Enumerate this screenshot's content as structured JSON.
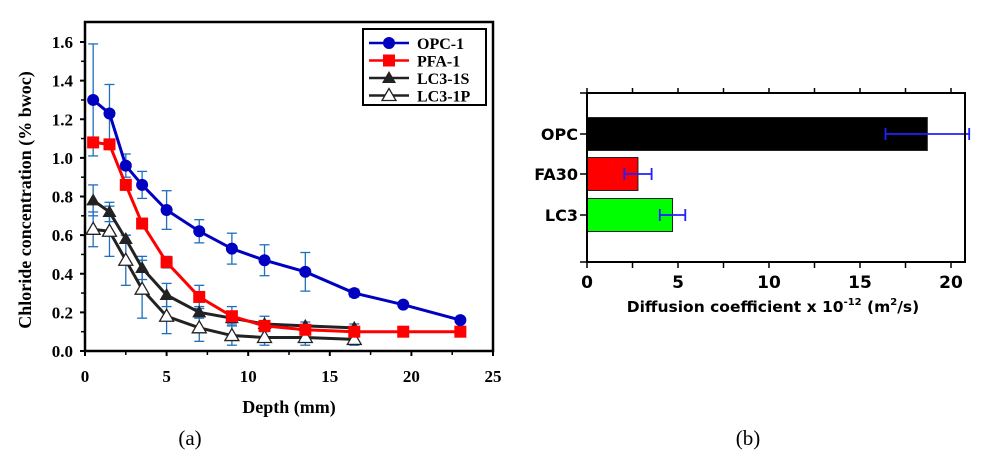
{
  "chart_data": [
    {
      "type": "line",
      "panel_label": "(a)",
      "title": "",
      "xlabel": "Depth (mm)",
      "ylabel": "Chloride concentration (% bwoc)",
      "xlim": [
        0,
        25
      ],
      "ylim": [
        0,
        1.6
      ],
      "xticks": [
        0,
        5,
        10,
        15,
        20,
        25
      ],
      "yticks": [
        0.0,
        0.2,
        0.4,
        0.6,
        0.8,
        1.0,
        1.2,
        1.4,
        1.6
      ],
      "ytick_labels": [
        "0.0",
        "0.2",
        "0.4",
        "0.6",
        "0.8",
        "1.0",
        "1.2",
        "1.4",
        "1.6"
      ],
      "grid": false,
      "legend_position": "top-right",
      "series": [
        {
          "name": "OPC-1",
          "color": "#0000c0",
          "marker": "circle",
          "x": [
            0.5,
            1.5,
            2.5,
            3.5,
            5,
            7,
            9,
            11,
            13.5,
            16.5,
            19.5,
            23
          ],
          "y": [
            1.3,
            1.23,
            0.96,
            0.86,
            0.73,
            0.62,
            0.53,
            0.47,
            0.41,
            0.3,
            0.24,
            0.16
          ],
          "err": [
            0.29,
            0.15,
            0.06,
            0.07,
            0.1,
            0.06,
            0.08,
            0.08,
            0.1,
            0.02,
            0.0,
            0.0
          ]
        },
        {
          "name": "PFA-1",
          "color": "#ff0000",
          "marker": "square",
          "x": [
            0.5,
            1.5,
            2.5,
            3.5,
            5,
            7,
            9,
            11,
            13.5,
            16.5,
            19.5,
            23
          ],
          "y": [
            1.08,
            1.07,
            0.86,
            0.66,
            0.46,
            0.28,
            0.18,
            0.13,
            0.11,
            0.1,
            0.1,
            0.1
          ],
          "err": [
            0.02,
            0.0,
            0.0,
            0.0,
            0.03,
            0.06,
            0.05,
            0.0,
            0.0,
            0.0,
            0.0,
            0.0
          ]
        },
        {
          "name": "LC3-1S",
          "color": "#222222",
          "marker": "triangle-filled",
          "x": [
            0.5,
            1.5,
            2.5,
            3.5,
            5,
            7,
            9,
            11,
            13.5,
            16.5
          ],
          "y": [
            0.78,
            0.72,
            0.58,
            0.43,
            0.29,
            0.2,
            0.17,
            0.14,
            0.13,
            0.12
          ],
          "err": [
            0.08,
            0.05,
            0.02,
            0.06,
            0.06,
            0.03,
            0.03,
            0.04,
            0.02,
            0.02
          ]
        },
        {
          "name": "LC3-1P",
          "color": "#222222",
          "marker": "triangle-open",
          "x": [
            0.5,
            1.5,
            2.5,
            3.5,
            5,
            7,
            9,
            11,
            13.5,
            16.5
          ],
          "y": [
            0.63,
            0.62,
            0.47,
            0.32,
            0.18,
            0.12,
            0.08,
            0.07,
            0.07,
            0.06
          ],
          "err": [
            0.09,
            0.13,
            0.13,
            0.15,
            0.09,
            0.07,
            0.05,
            0.04,
            0.04,
            0.03
          ]
        }
      ]
    },
    {
      "type": "bar",
      "orientation": "horizontal",
      "panel_label": "(b)",
      "title": "",
      "xlabel": "Diffusion coefficient x 10",
      "xlabel_exp": "-12",
      "xlabel_units_pre": " (m",
      "xlabel_units_exp": "2",
      "xlabel_units_post": "/s)",
      "ylabel": "",
      "xlim": [
        0,
        21
      ],
      "xticks": [
        0,
        5,
        10,
        15,
        20
      ],
      "grid": false,
      "categories": [
        "OPC",
        "FA30",
        "LC3"
      ],
      "values": [
        18.7,
        2.8,
        4.7
      ],
      "errors": [
        2.3,
        0.75,
        0.7
      ],
      "colors": [
        "#000000",
        "#ff0000",
        "#00ff00"
      ],
      "error_color": "#2020ff"
    }
  ]
}
